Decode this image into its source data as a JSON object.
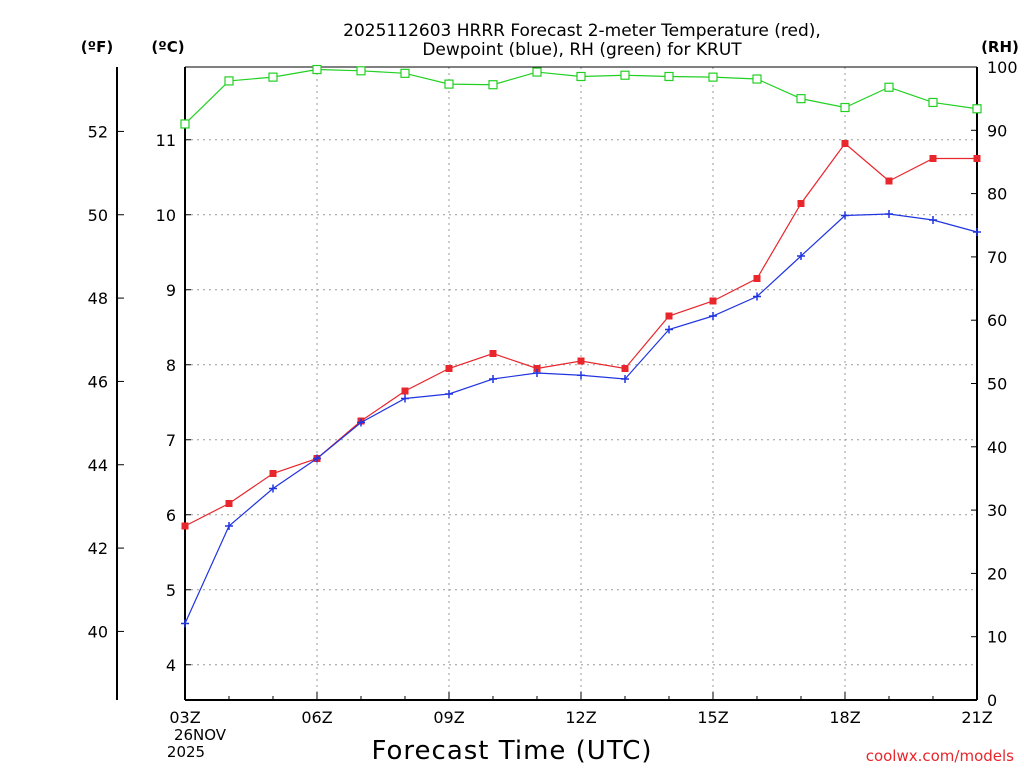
{
  "chart_data": {
    "type": "line",
    "title": "2025112603 HRRR Forecast 2-meter Temperature (red),",
    "subtitle": "Dewpoint (blue), RH (green) for KRUT",
    "xlabel": "Forecast Time (UTC)",
    "x_tick_labels": [
      "03Z",
      "06Z",
      "09Z",
      "12Z",
      "15Z",
      "18Z",
      "21Z"
    ],
    "date_label_line1": "26NOV",
    "date_label_line2": "2025",
    "left_unit_f": "(ºF)",
    "left_unit_c": "(ºC)",
    "right_unit": "(RH)",
    "credit": "coolwx.com/models",
    "x_hours": [
      3,
      4,
      5,
      6,
      7,
      8,
      9,
      10,
      11,
      12,
      13,
      14,
      15,
      16,
      17,
      18,
      19,
      20,
      21
    ],
    "c_ticks": [
      4,
      5,
      6,
      7,
      8,
      9,
      10,
      11
    ],
    "f_ticks": [
      40,
      42,
      44,
      46,
      48,
      50,
      52
    ],
    "rh_ticks": [
      0,
      10,
      20,
      30,
      40,
      50,
      60,
      70,
      80,
      90,
      100
    ],
    "c_range": [
      3.53,
      11.97
    ],
    "rh_range": [
      0,
      100
    ],
    "grid": true,
    "series": [
      {
        "color": "#e8262c",
        "marker": "filled-square",
        "axis": "celsius",
        "values": [
          5.85,
          6.15,
          6.55,
          6.75,
          7.25,
          7.65,
          7.95,
          8.15,
          7.95,
          8.05,
          7.95,
          8.65,
          8.85,
          9.15,
          10.15,
          10.95,
          10.45,
          10.75,
          10.75
        ]
      },
      {
        "color": "#2035e0",
        "marker": "plus",
        "axis": "celsius",
        "values": [
          4.55,
          5.85,
          6.35,
          6.75,
          7.23,
          7.55,
          7.61,
          7.81,
          7.89,
          7.86,
          7.81,
          8.47,
          8.65,
          8.91,
          9.45,
          9.99,
          10.01,
          9.93,
          9.77
        ]
      },
      {
        "color": "#22d022",
        "marker": "open-square",
        "axis": "rh",
        "values": [
          91.0,
          97.8,
          98.4,
          99.6,
          99.4,
          99.0,
          97.3,
          97.2,
          99.2,
          98.5,
          98.7,
          98.5,
          98.4,
          98.1,
          95.0,
          93.6,
          96.8,
          94.4,
          93.4
        ]
      }
    ]
  }
}
